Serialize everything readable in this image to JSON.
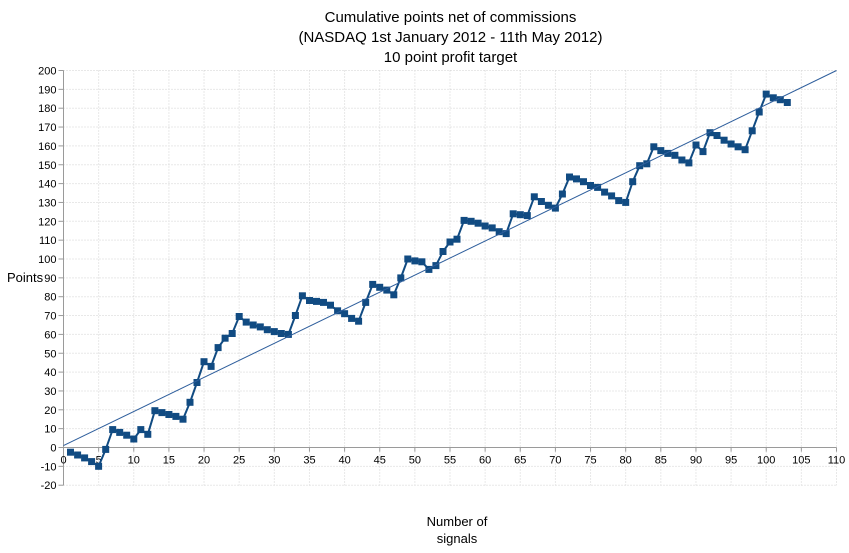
{
  "title_lines": [
    "Cumulative points net of commissions",
    "(NASDAQ 1st January 2012 - 11th May 2012)",
    "10 point profit target"
  ],
  "axes": {
    "y_label": "Points",
    "x_label_line1": "Number of",
    "x_label_line2": "signals"
  },
  "colors": {
    "background": "#ffffff",
    "series": "#114B82",
    "trend": "#2E5E9C",
    "grid": "#d2d2d2",
    "axis": "#9a9a9a",
    "text": "#000000"
  },
  "chart_data": {
    "type": "line",
    "title": "Cumulative points net of commissions (NASDAQ 1st January 2012 - 11th May 2012) 10 point profit target",
    "xlabel": "Number of signals",
    "ylabel": "Points",
    "xlim": [
      0,
      110
    ],
    "ylim": [
      -20,
      200
    ],
    "x_tick_step": 5,
    "y_tick_step": 10,
    "grid": true,
    "legend": "none",
    "series": [
      {
        "name": "cumulative-points-net-of-commissions",
        "type": "line",
        "marker": "square",
        "marker_size": 7,
        "line_width": 2,
        "color": "#114B82",
        "x_start": 1,
        "values": [
          -2.5,
          -4,
          -5.5,
          -7.5,
          -10,
          -1,
          9.5,
          8,
          6.5,
          4.5,
          9.5,
          7,
          19.5,
          18.5,
          17.5,
          16.5,
          15,
          24,
          34.5,
          45.5,
          43,
          53,
          58,
          60.5,
          69.5,
          66.5,
          65,
          64,
          62.5,
          61.5,
          60.5,
          60,
          70,
          80.5,
          78,
          77.5,
          77,
          75.5,
          72.5,
          71,
          68.5,
          67,
          77,
          86.5,
          85,
          83.5,
          81,
          90,
          100,
          99,
          98.5,
          94.5,
          96.5,
          104,
          109,
          110.5,
          120.5,
          120,
          119,
          117.5,
          116.5,
          114.5,
          113.5,
          124,
          123.5,
          123,
          133,
          130.5,
          128.5,
          127,
          134.5,
          143.5,
          142.5,
          141,
          139,
          138,
          135.5,
          133.5,
          131,
          130,
          141,
          149.5,
          150.5,
          159.5,
          157.5,
          156,
          155,
          152.5,
          151,
          160.5,
          157,
          167,
          165.5,
          163,
          161,
          159.5,
          158,
          168,
          178,
          187.5,
          185.5,
          184.5,
          183
        ]
      },
      {
        "name": "linear-reference-line",
        "type": "line",
        "marker": "none",
        "line_width": 1,
        "color": "#2E5E9C",
        "points": [
          [
            0,
            1
          ],
          [
            110,
            200
          ]
        ]
      }
    ]
  }
}
